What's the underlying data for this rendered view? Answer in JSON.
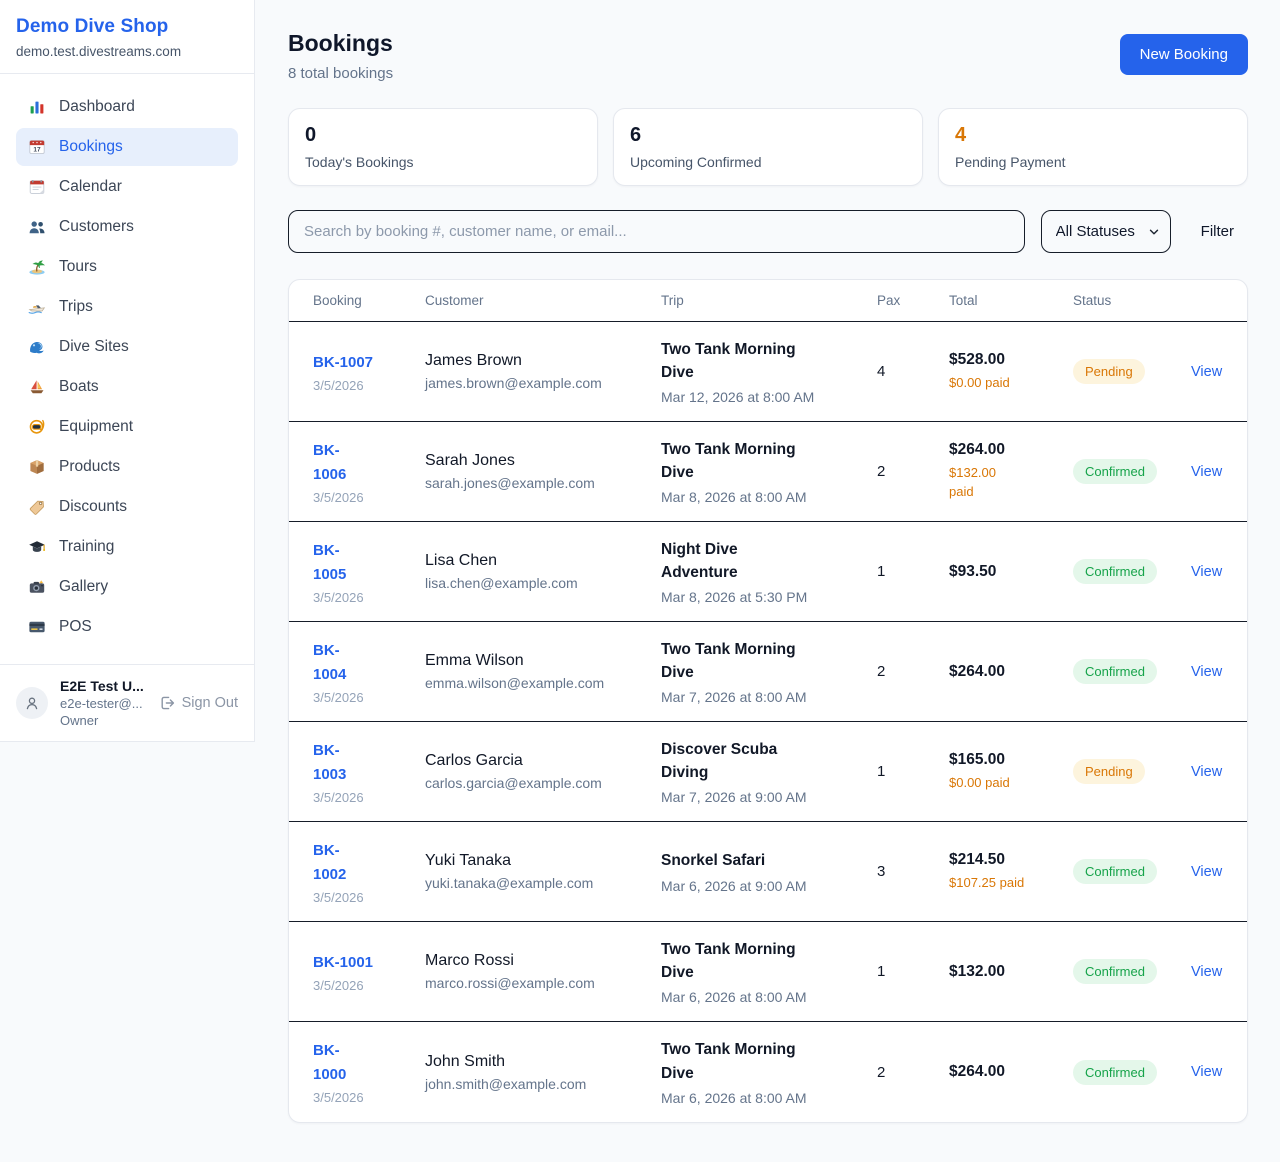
{
  "colors": {
    "accent": "#2563eb",
    "accent_soft_bg": "#e7effc",
    "page_bg": "#f8fafc",
    "heading": "#0f172a",
    "muted": "#64748b",
    "card_border": "#e5e8ee",
    "dark_border": "#161d29",
    "orange": "#d97706",
    "pending_bg": "#fdf4dd",
    "pending_text": "#d97706",
    "confirmed_bg": "#e4f7ea",
    "confirmed_text": "#16a34a",
    "booking_date_text": "#94a3b8"
  },
  "sidebar": {
    "brand": "Demo Dive Shop",
    "domain": "demo.test.divestreams.com",
    "items": [
      {
        "label": "Dashboard",
        "icon": "bar-chart",
        "active": false
      },
      {
        "label": "Bookings",
        "icon": "calendar-date",
        "active": true
      },
      {
        "label": "Calendar",
        "icon": "calendar",
        "active": false
      },
      {
        "label": "Customers",
        "icon": "users",
        "active": false
      },
      {
        "label": "Tours",
        "icon": "island",
        "active": false
      },
      {
        "label": "Trips",
        "icon": "speedboat",
        "active": false
      },
      {
        "label": "Dive Sites",
        "icon": "wave",
        "active": false
      },
      {
        "label": "Boats",
        "icon": "sailboat",
        "active": false
      },
      {
        "label": "Equipment",
        "icon": "diving-mask",
        "active": false
      },
      {
        "label": "Products",
        "icon": "package",
        "active": false
      },
      {
        "label": "Discounts",
        "icon": "tag",
        "active": false
      },
      {
        "label": "Training",
        "icon": "graduation-cap",
        "active": false
      },
      {
        "label": "Gallery",
        "icon": "camera",
        "active": false
      },
      {
        "label": "POS",
        "icon": "credit-card",
        "active": false
      }
    ],
    "user": {
      "name": "E2E Test U...",
      "email": "e2e-tester@...",
      "role": "Owner",
      "sign_out_label": "Sign Out"
    }
  },
  "header": {
    "title": "Bookings",
    "subtitle": "8 total bookings",
    "new_booking_label": "New Booking"
  },
  "stats": [
    {
      "value": "0",
      "label": "Today's Bookings",
      "value_color": "#0f172a"
    },
    {
      "value": "6",
      "label": "Upcoming Confirmed",
      "value_color": "#0f172a"
    },
    {
      "value": "4",
      "label": "Pending Payment",
      "value_color": "#d97706"
    }
  ],
  "filters": {
    "search_placeholder": "Search by booking #, customer name, or email...",
    "status_selected": "All Statuses",
    "filter_label": "Filter"
  },
  "table": {
    "columns": [
      "Booking",
      "Customer",
      "Trip",
      "Pax",
      "Total",
      "Status"
    ],
    "rows": [
      {
        "booking": "BK-1007",
        "booking_wraps": false,
        "date": "3/5/2026",
        "customer_name": "James Brown",
        "customer_email": "james.brown@example.com",
        "trip_name": "Two Tank Morning Dive",
        "trip_datetime": "Mar 12, 2026 at 8:00 AM",
        "pax": "4",
        "total": "$528.00",
        "paid": "$0.00 paid",
        "paid_wraps": false,
        "status": "Pending",
        "action": "View"
      },
      {
        "booking": "BK-1006",
        "booking_wraps": true,
        "date": "3/5/2026",
        "customer_name": "Sarah Jones",
        "customer_email": "sarah.jones@example.com",
        "trip_name": "Two Tank Morning Dive",
        "trip_datetime": "Mar 8, 2026 at 8:00 AM",
        "pax": "2",
        "total": "$264.00",
        "paid": "$132.00 paid",
        "paid_wraps": true,
        "status": "Confirmed",
        "action": "View"
      },
      {
        "booking": "BK-1005",
        "booking_wraps": true,
        "date": "3/5/2026",
        "customer_name": "Lisa Chen",
        "customer_email": "lisa.chen@example.com",
        "trip_name": "Night Dive Adventure",
        "trip_datetime": "Mar 8, 2026 at 5:30 PM",
        "pax": "1",
        "total": "$93.50",
        "paid": null,
        "paid_wraps": false,
        "status": "Confirmed",
        "action": "View"
      },
      {
        "booking": "BK-1004",
        "booking_wraps": true,
        "date": "3/5/2026",
        "customer_name": "Emma Wilson",
        "customer_email": "emma.wilson@example.com",
        "trip_name": "Two Tank Morning Dive",
        "trip_datetime": "Mar 7, 2026 at 8:00 AM",
        "pax": "2",
        "total": "$264.00",
        "paid": null,
        "paid_wraps": false,
        "status": "Confirmed",
        "action": "View"
      },
      {
        "booking": "BK-1003",
        "booking_wraps": true,
        "date": "3/5/2026",
        "customer_name": "Carlos Garcia",
        "customer_email": "carlos.garcia@example.com",
        "trip_name": "Discover Scuba Diving",
        "trip_datetime": "Mar 7, 2026 at 9:00 AM",
        "pax": "1",
        "total": "$165.00",
        "paid": "$0.00 paid",
        "paid_wraps": false,
        "status": "Pending",
        "action": "View"
      },
      {
        "booking": "BK-1002",
        "booking_wraps": true,
        "date": "3/5/2026",
        "customer_name": "Yuki Tanaka",
        "customer_email": "yuki.tanaka@example.com",
        "trip_name": "Snorkel Safari",
        "trip_datetime": "Mar 6, 2026 at 9:00 AM",
        "pax": "3",
        "total": "$214.50",
        "paid": "$107.25 paid",
        "paid_wraps": false,
        "status": "Confirmed",
        "action": "View"
      },
      {
        "booking": "BK-1001",
        "booking_wraps": false,
        "date": "3/5/2026",
        "customer_name": "Marco Rossi",
        "customer_email": "marco.rossi@example.com",
        "trip_name": "Two Tank Morning Dive",
        "trip_datetime": "Mar 6, 2026 at 8:00 AM",
        "pax": "1",
        "total": "$132.00",
        "paid": null,
        "paid_wraps": false,
        "status": "Confirmed",
        "action": "View"
      },
      {
        "booking": "BK-1000",
        "booking_wraps": true,
        "date": "3/5/2026",
        "customer_name": "John Smith",
        "customer_email": "john.smith@example.com",
        "trip_name": "Two Tank Morning Dive",
        "trip_datetime": "Mar 6, 2026 at 8:00 AM",
        "pax": "2",
        "total": "$264.00",
        "paid": null,
        "paid_wraps": false,
        "status": "Confirmed",
        "action": "View"
      }
    ]
  }
}
